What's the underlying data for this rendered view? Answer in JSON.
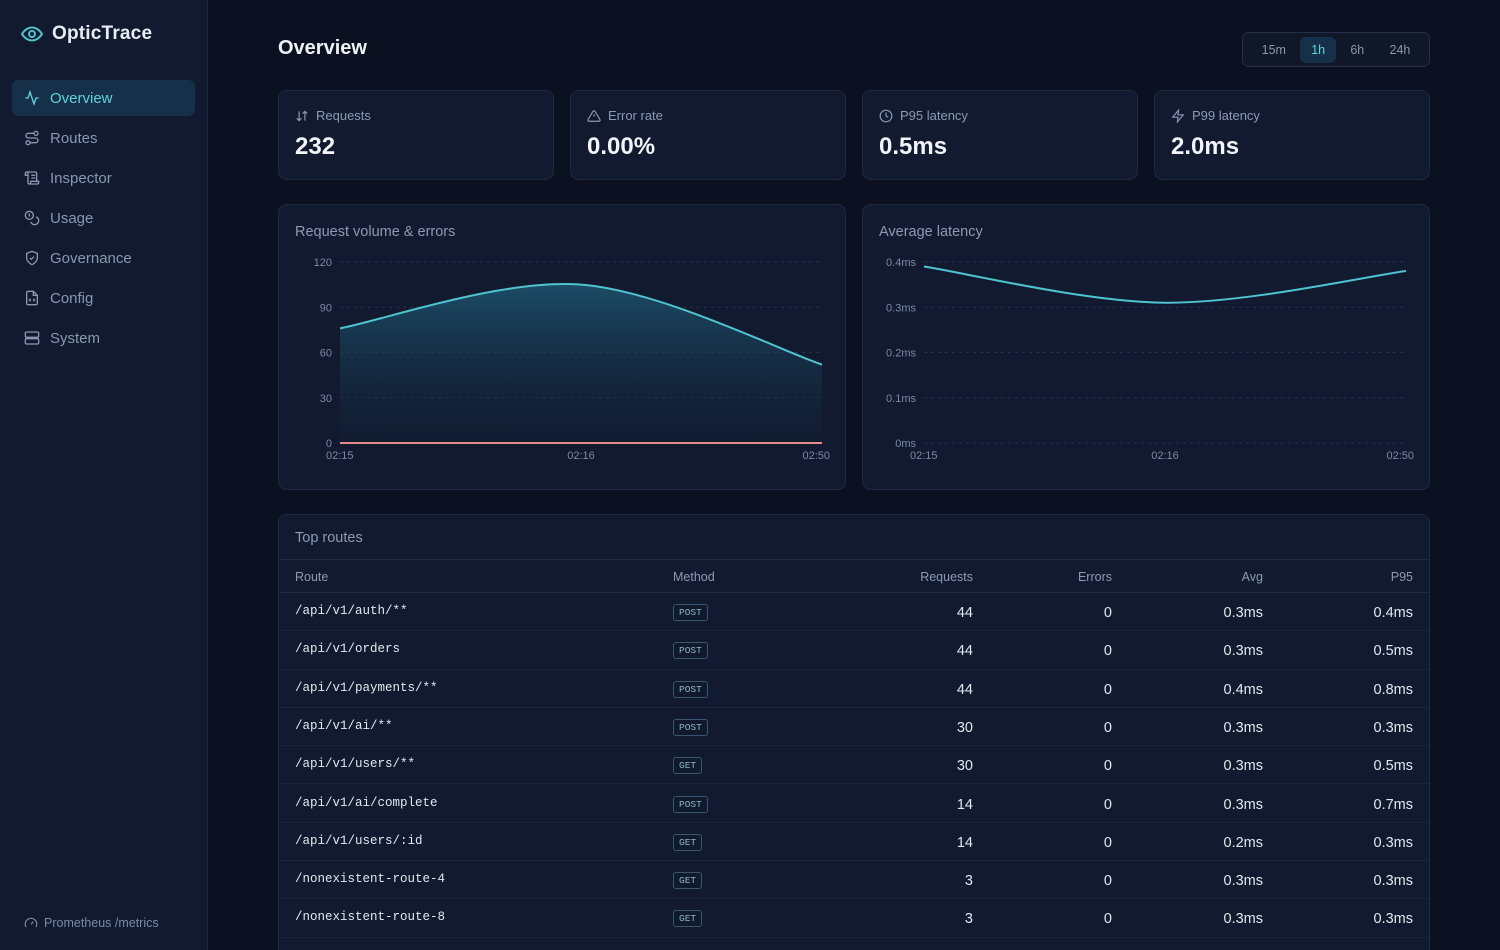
{
  "app": {
    "name": "OpticTrace",
    "logo_icon": "eye-icon",
    "accent": "#5fd3dc"
  },
  "sidebar": {
    "items": [
      {
        "label": "Overview",
        "icon": "activity-icon",
        "active": true
      },
      {
        "label": "Routes",
        "icon": "routes-icon",
        "active": false
      },
      {
        "label": "Inspector",
        "icon": "scroll-icon",
        "active": false
      },
      {
        "label": "Usage",
        "icon": "coins-icon",
        "active": false
      },
      {
        "label": "Governance",
        "icon": "shield-icon",
        "active": false
      },
      {
        "label": "Config",
        "icon": "file-code-icon",
        "active": false
      },
      {
        "label": "System",
        "icon": "server-icon",
        "active": false
      }
    ],
    "footer": "Prometheus /metrics"
  },
  "header": {
    "title": "Overview"
  },
  "time_range": {
    "options": [
      "15m",
      "1h",
      "6h",
      "24h"
    ],
    "selected": "1h"
  },
  "stats": [
    {
      "label": "Requests",
      "value": "232",
      "icon": "arrows-sort-icon"
    },
    {
      "label": "Error rate",
      "value": "0.00%",
      "icon": "alert-triangle-icon"
    },
    {
      "label": "P95 latency",
      "value": "0.5ms",
      "icon": "clock-icon"
    },
    {
      "label": "P99 latency",
      "value": "2.0ms",
      "icon": "zap-icon"
    }
  ],
  "chart_data": [
    {
      "type": "area",
      "title": "Request volume & errors",
      "x_tick_labels": [
        "02:15",
        "02:16",
        "02:50"
      ],
      "y_ticks": [
        "0",
        "30",
        "60",
        "90",
        "120"
      ],
      "ylim": [
        0,
        120
      ],
      "series": [
        {
          "name": "",
          "color": "#4fc3cf",
          "values": [
            76,
            105,
            52
          ]
        },
        {
          "name": "",
          "color": "#e88a8a",
          "values": [
            0,
            0,
            0
          ]
        }
      ],
      "grid": true
    },
    {
      "type": "line",
      "title": "Average latency",
      "x_tick_labels": [
        "02:15",
        "02:16",
        "02:50"
      ],
      "y_ticks": [
        "0ms",
        "0.1ms",
        "0.2ms",
        "0.3ms",
        "0.4ms"
      ],
      "ylim": [
        0,
        0.4
      ],
      "series": [
        {
          "name": "",
          "color": "#4fc3cf",
          "values": [
            0.39,
            0.31,
            0.38
          ]
        }
      ],
      "grid": true
    }
  ],
  "top_routes": {
    "title": "Top routes",
    "columns": [
      "Route",
      "Method",
      "Requests",
      "Errors",
      "Avg",
      "P95"
    ],
    "rows": [
      {
        "route": "/api/v1/auth/**",
        "method": "POST",
        "requests": "44",
        "errors": "0",
        "avg": "0.3ms",
        "p95": "0.4ms"
      },
      {
        "route": "/api/v1/orders",
        "method": "POST",
        "requests": "44",
        "errors": "0",
        "avg": "0.3ms",
        "p95": "0.5ms"
      },
      {
        "route": "/api/v1/payments/**",
        "method": "POST",
        "requests": "44",
        "errors": "0",
        "avg": "0.4ms",
        "p95": "0.8ms"
      },
      {
        "route": "/api/v1/ai/**",
        "method": "POST",
        "requests": "30",
        "errors": "0",
        "avg": "0.3ms",
        "p95": "0.3ms"
      },
      {
        "route": "/api/v1/users/**",
        "method": "GET",
        "requests": "30",
        "errors": "0",
        "avg": "0.3ms",
        "p95": "0.5ms"
      },
      {
        "route": "/api/v1/ai/complete",
        "method": "POST",
        "requests": "14",
        "errors": "0",
        "avg": "0.3ms",
        "p95": "0.7ms"
      },
      {
        "route": "/api/v1/users/:id",
        "method": "GET",
        "requests": "14",
        "errors": "0",
        "avg": "0.2ms",
        "p95": "0.3ms"
      },
      {
        "route": "/nonexistent-route-4",
        "method": "GET",
        "requests": "3",
        "errors": "0",
        "avg": "0.3ms",
        "p95": "0.3ms"
      },
      {
        "route": "/nonexistent-route-8",
        "method": "GET",
        "requests": "3",
        "errors": "0",
        "avg": "0.3ms",
        "p95": "0.3ms"
      }
    ]
  }
}
